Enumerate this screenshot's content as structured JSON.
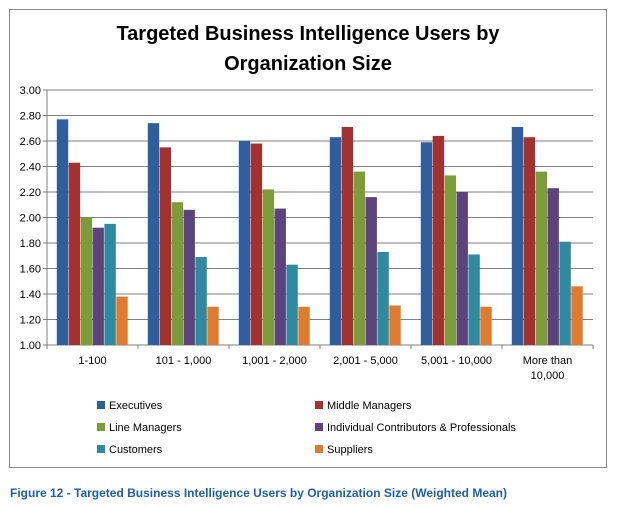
{
  "chart_data": {
    "type": "bar",
    "title_lines": [
      "Targeted Business Intelligence Users by",
      "Organization Size"
    ],
    "xlabel": "",
    "ylabel": "",
    "ylim": [
      1.0,
      3.0
    ],
    "y_ticks": [
      "1.00",
      "1.20",
      "1.40",
      "1.60",
      "1.80",
      "2.00",
      "2.20",
      "2.40",
      "2.60",
      "2.80",
      "3.00"
    ],
    "grid": true,
    "legend_position": "bottom",
    "categories": [
      [
        "1-100"
      ],
      [
        "101 - 1,000"
      ],
      [
        "1,001 - 2,000"
      ],
      [
        "2,001 - 5,000"
      ],
      [
        "5,001 - 10,000"
      ],
      [
        "More than",
        "10,000"
      ]
    ],
    "series": [
      {
        "name": "Executives",
        "color": "#2f5e9e",
        "values": [
          2.77,
          2.74,
          2.6,
          2.63,
          2.59,
          2.71
        ]
      },
      {
        "name": "Middle Managers",
        "color": "#a3312f",
        "values": [
          2.43,
          2.55,
          2.58,
          2.71,
          2.64,
          2.63
        ]
      },
      {
        "name": "Line Managers",
        "color": "#7c9c38",
        "values": [
          2.0,
          2.12,
          2.22,
          2.36,
          2.33,
          2.36
        ]
      },
      {
        "name": "Individual Contributors & Professionals",
        "color": "#5d437c",
        "values": [
          1.92,
          2.06,
          2.07,
          2.16,
          2.2,
          2.23
        ]
      },
      {
        "name": "Customers",
        "color": "#2f8aa0",
        "values": [
          1.95,
          1.69,
          1.63,
          1.73,
          1.71,
          1.81
        ]
      },
      {
        "name": "Suppliers",
        "color": "#e07a2e",
        "values": [
          1.38,
          1.3,
          1.3,
          1.31,
          1.3,
          1.46
        ]
      }
    ]
  },
  "caption": "Figure 12 - Targeted Business Intelligence Users by Organization Size (Weighted Mean)"
}
